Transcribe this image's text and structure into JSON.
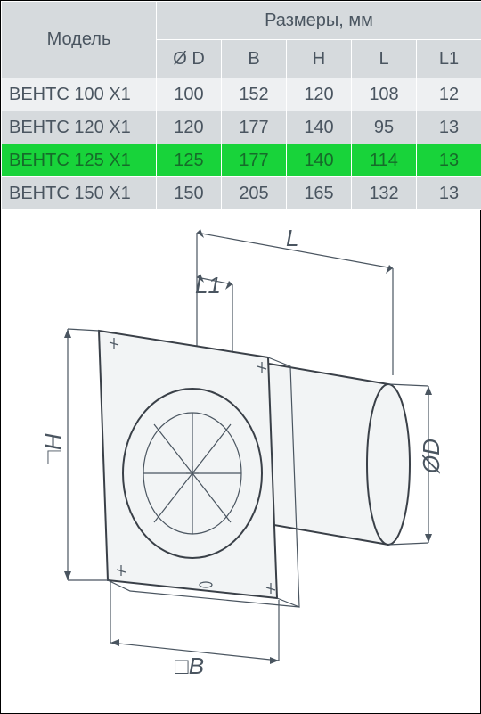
{
  "table": {
    "header_model": "Модель",
    "header_dims": "Размеры, мм",
    "columns": [
      "Ø D",
      "B",
      "H",
      "L",
      "L1"
    ],
    "rows": [
      {
        "model": "ВЕНТС 100 X1",
        "d": "100",
        "b": "152",
        "h": "120",
        "l": "108",
        "l1": "12",
        "shade": "odd",
        "highlight": false
      },
      {
        "model": "ВЕНТС 120 X1",
        "d": "120",
        "b": "177",
        "h": "140",
        "l": "95",
        "l1": "13",
        "shade": "even",
        "highlight": false
      },
      {
        "model": "ВЕНТС 125 X1",
        "d": "125",
        "b": "177",
        "h": "140",
        "l": "114",
        "l1": "13",
        "shade": "odd",
        "highlight": true
      },
      {
        "model": "ВЕНТС 150 X1",
        "d": "150",
        "b": "205",
        "h": "165",
        "l": "132",
        "l1": "13",
        "shade": "even",
        "highlight": false
      }
    ],
    "colors": {
      "header_bg": "#d6dadd",
      "row_odd_bg": "#eef0f2",
      "row_even_bg": "#d6dadd",
      "highlight_bg": "#18d33a",
      "text": "#4a5560",
      "highlight_text": "#166b2a"
    }
  },
  "diagram": {
    "labels": {
      "L": "L",
      "L1": "L1",
      "H": "□H",
      "B": "□B",
      "D": "ØD"
    },
    "stroke": "#4a5560",
    "body_fill": "#f2f4f5"
  }
}
